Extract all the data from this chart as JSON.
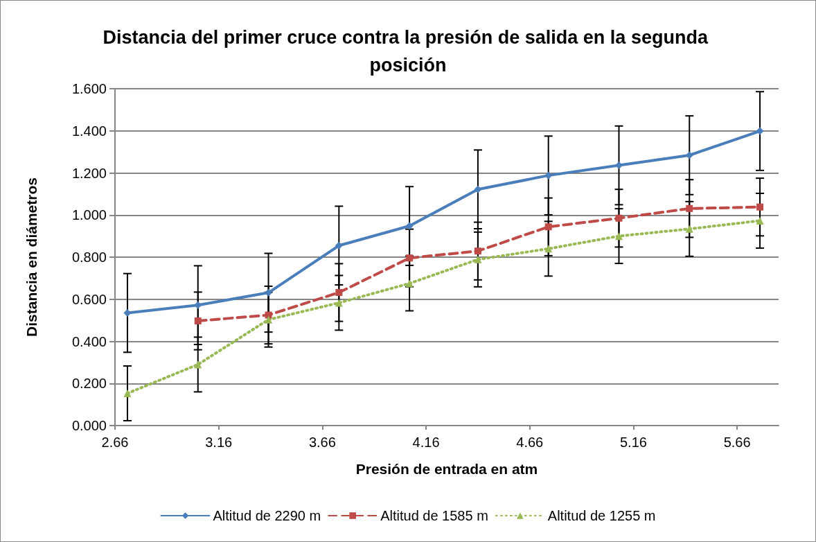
{
  "chart_data": {
    "type": "line",
    "title": "Distancia del primer cruce contra la presión de salida en la segunda posición",
    "xlabel": "Presión de entrada en atm",
    "ylabel": "Distancia en diámetros",
    "x": [
      2.72,
      3.06,
      3.4,
      3.74,
      4.08,
      4.41,
      4.75,
      5.09,
      5.43,
      5.77
    ],
    "series": [
      {
        "name": "Altitud de 2290 m",
        "color": "#4a7ebb",
        "marker": "diamond",
        "line_style": "solid",
        "values": [
          0.535,
          0.572,
          0.631,
          0.855,
          0.948,
          1.122,
          1.188,
          1.236,
          1.284,
          1.399
        ],
        "errors": [
          0.187,
          0.187,
          0.187,
          0.187,
          0.187,
          0.187,
          0.187,
          0.187,
          0.187,
          0.187
        ]
      },
      {
        "name": "Altitud de 1585 m",
        "color": "#be4b48",
        "marker": "square",
        "line_style": "dashed",
        "values": [
          null,
          0.497,
          0.525,
          0.632,
          0.796,
          0.829,
          0.944,
          0.985,
          1.031,
          1.038
        ],
        "errors": [
          null,
          0.137,
          0.137,
          0.137,
          0.137,
          0.137,
          0.137,
          0.137,
          0.137,
          0.137
        ]
      },
      {
        "name": "Altitud de 1255 m",
        "color": "#98b954",
        "marker": "triangle",
        "line_style": "dotted",
        "values": [
          0.153,
          0.29,
          0.503,
          0.583,
          0.675,
          0.789,
          0.84,
          0.9,
          0.934,
          0.973
        ],
        "errors": [
          0.13,
          0.13,
          0.13,
          0.13,
          0.13,
          0.13,
          0.13,
          0.13,
          0.13,
          0.13
        ]
      }
    ],
    "xlim": [
      2.66,
      5.86
    ],
    "xticks": [
      2.66,
      3.16,
      3.66,
      4.16,
      4.66,
      5.16,
      5.66
    ],
    "ylim": [
      0,
      1.6
    ],
    "yticks": [
      {
        "value": 0,
        "label": "0.000"
      },
      {
        "value": 0.2,
        "label": "0.200"
      },
      {
        "value": 0.4,
        "label": "0.400"
      },
      {
        "value": 0.6,
        "label": "0.600"
      },
      {
        "value": 0.8,
        "label": "0.800"
      },
      {
        "value": 1.0,
        "label": "1.000"
      },
      {
        "value": 1.2,
        "label": "1.200"
      },
      {
        "value": 1.4,
        "label": "1.400"
      },
      {
        "value": 1.6,
        "label": "1.600"
      }
    ],
    "grid": "y",
    "legend": "bottom"
  }
}
